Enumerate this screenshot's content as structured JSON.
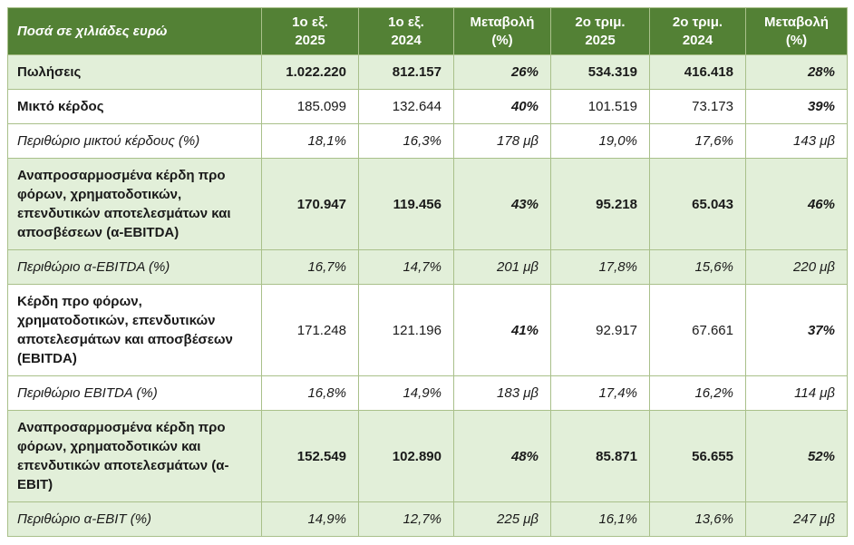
{
  "colors": {
    "header_bg": "#538135",
    "header_text": "#ffffff",
    "row_green": "#e2efd9",
    "border_color": "#a9c08a",
    "text_color": "#1a1a1a"
  },
  "table": {
    "header": {
      "label": "Ποσά σε χιλιάδες ευρώ",
      "columns": [
        "1ο εξ.\n2025",
        "1ο εξ.\n2024",
        "Μεταβολή\n(%)",
        "2ο τριμ.\n2025",
        "2ο τριμ.\n2024",
        "Μεταβολή\n(%)"
      ]
    },
    "rows": [
      {
        "label": "Πωλήσεις",
        "bg": "green",
        "label_style": "bold",
        "value_style": "bold",
        "change_style": "bold-italic",
        "cells": [
          "1.022.220",
          "812.157",
          "26%",
          "534.319",
          "416.418",
          "28%"
        ]
      },
      {
        "label": "Μικτό κέρδος",
        "bg": "white",
        "label_style": "bold",
        "value_style": "normal",
        "change_style": "bold-italic",
        "cells": [
          "185.099",
          "132.644",
          "40%",
          "101.519",
          "73.173",
          "39%"
        ]
      },
      {
        "label": "Περιθώριο μικτού κέρδους (%)",
        "bg": "white",
        "label_style": "italic",
        "value_style": "italic",
        "change_style": "italic",
        "cells": [
          "18,1%",
          "16,3%",
          "178 μβ",
          "19,0%",
          "17,6%",
          "143 μβ"
        ]
      },
      {
        "label": "Αναπροσαρμοσμένα κέρδη προ φόρων, χρηματοδοτικών, επενδυτικών αποτελεσμάτων και αποσβέσεων (α-EBITDA)",
        "bg": "green",
        "label_style": "bold",
        "value_style": "bold",
        "change_style": "bold-italic",
        "cells": [
          "170.947",
          "119.456",
          "43%",
          "95.218",
          "65.043",
          "46%"
        ]
      },
      {
        "label": "Περιθώριο α-EBITDA (%)",
        "bg": "green",
        "label_style": "italic",
        "value_style": "italic",
        "change_style": "italic",
        "cells": [
          "16,7%",
          "14,7%",
          "201 μβ",
          "17,8%",
          "15,6%",
          "220 μβ"
        ]
      },
      {
        "label": "Κέρδη προ φόρων, χρηματοδοτικών, επενδυτικών αποτελεσμάτων και αποσβέσεων (EBITDA)",
        "bg": "white",
        "label_style": "bold",
        "value_style": "normal",
        "change_style": "bold-italic",
        "cells": [
          "171.248",
          "121.196",
          "41%",
          "92.917",
          "67.661",
          "37%"
        ]
      },
      {
        "label": "Περιθώριο EBITDA (%)",
        "bg": "white",
        "label_style": "italic",
        "value_style": "italic",
        "change_style": "italic",
        "cells": [
          "16,8%",
          "14,9%",
          "183 μβ",
          "17,4%",
          "16,2%",
          "114 μβ"
        ]
      },
      {
        "label": "Αναπροσαρμοσμένα κέρδη προ φόρων, χρηματοδοτικών και επενδυτικών αποτελεσμάτων (α-EBIT)",
        "bg": "green",
        "label_style": "bold",
        "value_style": "bold",
        "change_style": "bold-italic",
        "cells": [
          "152.549",
          "102.890",
          "48%",
          "85.871",
          "56.655",
          "52%"
        ]
      },
      {
        "label": "Περιθώριο α-EBIT (%)",
        "bg": "green",
        "label_style": "italic",
        "value_style": "italic",
        "change_style": "italic",
        "cells": [
          "14,9%",
          "12,7%",
          "225 μβ",
          "16,1%",
          "13,6%",
          "247 μβ"
        ]
      }
    ]
  }
}
